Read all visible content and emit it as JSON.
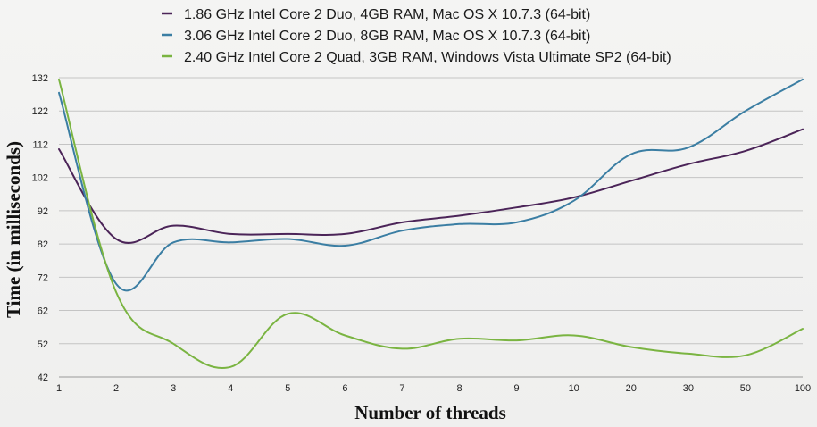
{
  "chart_data": {
    "type": "line",
    "title": "",
    "xlabel": "Number of threads",
    "ylabel": "Time (in milliseconds)",
    "categories": [
      "1",
      "2",
      "3",
      "4",
      "5",
      "6",
      "7",
      "8",
      "9",
      "10",
      "20",
      "30",
      "50",
      "100"
    ],
    "yticks": [
      42,
      52,
      62,
      72,
      82,
      92,
      102,
      112,
      122,
      132
    ],
    "ylim": [
      42,
      132
    ],
    "grid": true,
    "legend_position": "top",
    "series": [
      {
        "name": "1.86 GHz Intel Core 2 Duo, 4GB RAM, Mac OS X 10.7.3 (64-bit)",
        "color": "#4b2458",
        "values": [
          110.5,
          83.5,
          87.5,
          85,
          85,
          85,
          88.5,
          90.5,
          93,
          96,
          101,
          106,
          110,
          116.5
        ]
      },
      {
        "name": "3.06 GHz Intel Core 2 Duo, 8GB RAM, Mac OS X 10.7.3 (64-bit)",
        "color": "#3b7ea3",
        "values": [
          127.5,
          70,
          82.5,
          82.5,
          83.5,
          81.5,
          86,
          88,
          88.5,
          95,
          109,
          111,
          122,
          131.5
        ]
      },
      {
        "name": "2.40 GHz Intel Core 2 Quad, 3GB RAM, Windows Vista Ultimate SP2 (64-bit)",
        "color": "#7ab441",
        "values": [
          131.5,
          67.5,
          52,
          45,
          61,
          54.5,
          50.5,
          53.5,
          53,
          54.5,
          51,
          49,
          48.5,
          56.5
        ]
      }
    ]
  }
}
